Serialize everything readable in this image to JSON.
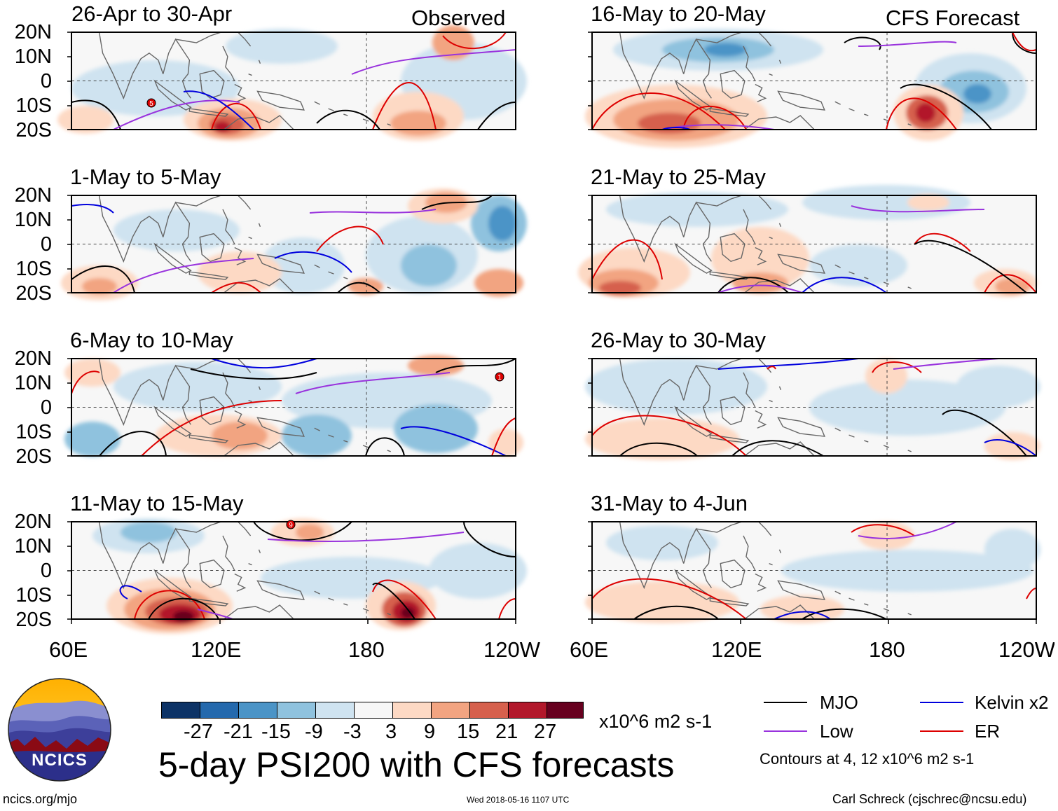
{
  "figure": {
    "title": "5-day PSI200 with CFS forecasts",
    "columns": {
      "observed_label": "Observed",
      "forecast_label": "CFS Forecast"
    },
    "panels_left": [
      {
        "period": "26-Apr to 30-Apr"
      },
      {
        "period": "1-May to 5-May"
      },
      {
        "period": "6-May to 10-May"
      },
      {
        "period": "11-May to 15-May"
      }
    ],
    "panels_right": [
      {
        "period": "16-May to 20-May"
      },
      {
        "period": "21-May to 25-May"
      },
      {
        "period": "26-May to 30-May"
      },
      {
        "period": "31-May to 4-Jun"
      }
    ],
    "lat_ticks": [
      "20N",
      "10N",
      "0",
      "10S",
      "20S"
    ],
    "lon_ticks": [
      "60E",
      "120E",
      "180",
      "120W"
    ],
    "colorbar": {
      "colors": [
        "#0d3366",
        "#2469ad",
        "#4b94c7",
        "#8fc2de",
        "#cfe3f0",
        "#f7f7f7",
        "#fdd9c4",
        "#f2a481",
        "#d6604d",
        "#b2182b",
        "#67001f"
      ],
      "tick_labels": [
        "-27",
        "-21",
        "-15",
        "-9",
        "-3",
        "3",
        "9",
        "15",
        "21",
        "27"
      ],
      "units": "x10^6 m2 s-1"
    },
    "legend": {
      "items": [
        {
          "label": "MJO",
          "color": "#000000"
        },
        {
          "label": "Kelvin x2",
          "color": "#0000dd"
        },
        {
          "label": "Low",
          "color": "#9933dd"
        },
        {
          "label": "ER",
          "color": "#dd0000"
        }
      ],
      "note": "Contours at 4, 12 x10^6 m2 s-1"
    },
    "cyclone_markers": [
      "5",
      "1",
      "9"
    ],
    "footer": {
      "org_logo_text": "NCICS",
      "url": "ncics.org/mjo",
      "timestamp": "Wed 2018-05-16 1107 UTC",
      "credit": "Carl Schreck (cjschrec@ncsu.edu)"
    }
  }
}
